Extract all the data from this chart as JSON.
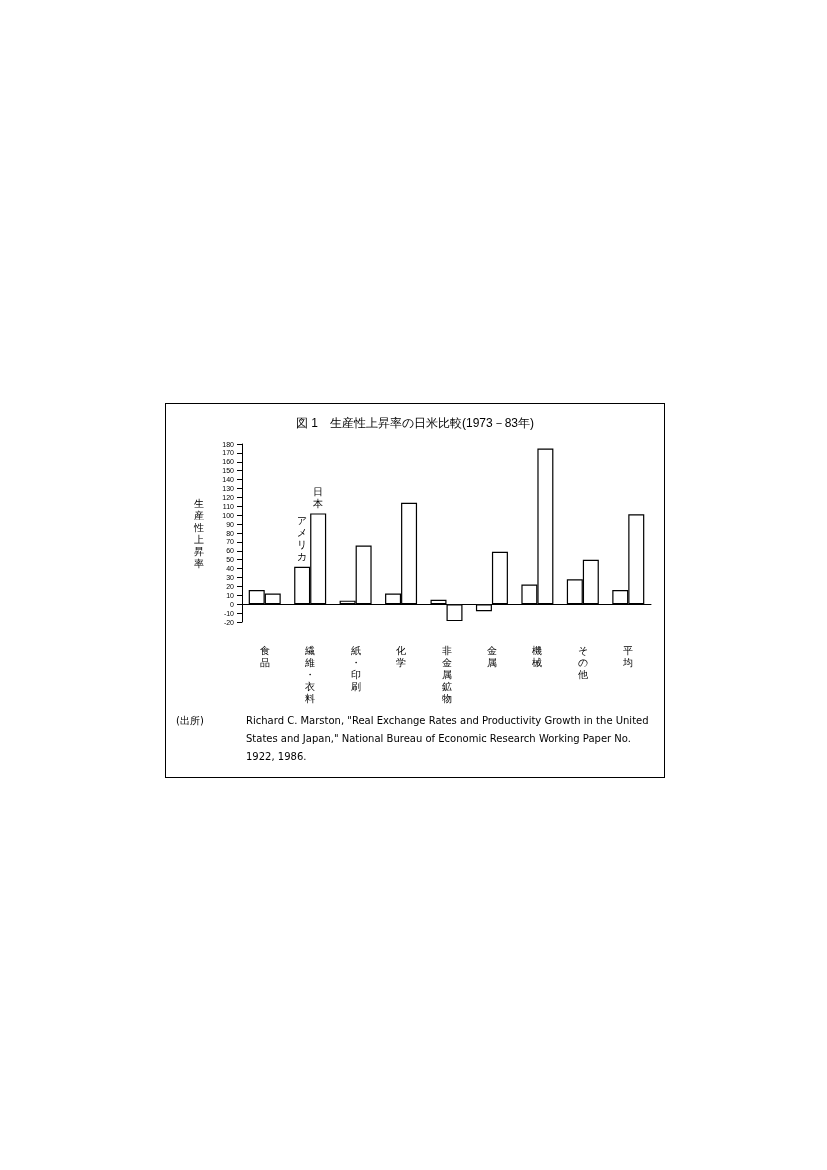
{
  "chart_data": {
    "type": "bar",
    "title": "図 1　生産性上昇率の日米比較(1973－83年)",
    "ylabel": "生産性上昇率",
    "categories": [
      "食品",
      "繊維・衣料",
      "紙・印刷",
      "化学",
      "非金属鉱物",
      "金属",
      "機械",
      "その他",
      "平均"
    ],
    "series": [
      {
        "name": "アメリカ",
        "color": "#ffffff",
        "values": [
          16,
          42,
          4,
          12,
          5,
          -8,
          22,
          28,
          16
        ]
      },
      {
        "name": "日本",
        "color": "#ffffff",
        "values": [
          12,
          102,
          66,
          114,
          -19,
          59,
          175,
          50,
          101
        ]
      }
    ],
    "ylim": [
      -20,
      180
    ],
    "yticks": [
      -20,
      -10,
      0,
      10,
      20,
      30,
      40,
      50,
      60,
      70,
      80,
      90,
      100,
      110,
      120,
      130,
      140,
      150,
      160,
      170,
      180
    ],
    "legend": false,
    "annotations": [
      "(出所)",
      "Richard C. Marston, \"Real Exchange Rates and Productivity Growth in the United States and Japan,\" National Bureau of Economic Research Working Paper No. 1922,  1986."
    ]
  }
}
